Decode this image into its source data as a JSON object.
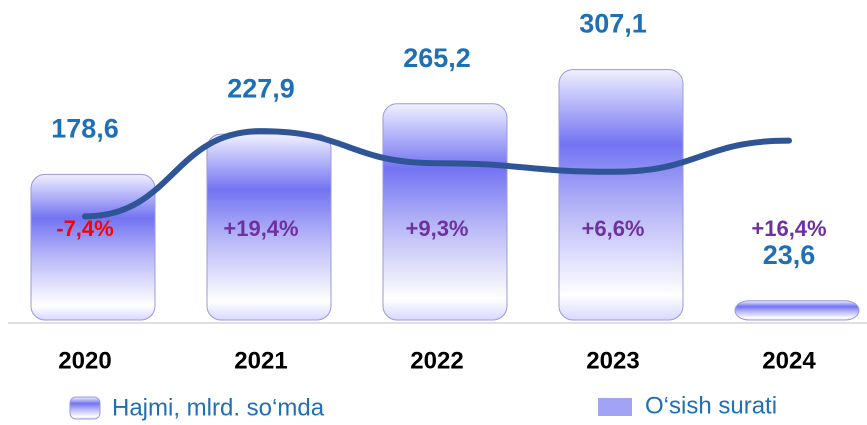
{
  "chart_data": {
    "type": "bar",
    "categories": [
      "2020",
      "2021",
      "2022",
      "2023",
      "2024"
    ],
    "series": [
      {
        "name": "Hajmi, mlrd. so‘mda",
        "color": "#6b6bf0",
        "label_color": "#1f6fb5",
        "values": [
          178.6,
          227.9,
          265.2,
          307.1,
          23.6
        ],
        "value_labels": [
          "178,6",
          "227,9",
          "265,2",
          "307,1",
          "23,6"
        ]
      },
      {
        "name": "O‘sish surati",
        "type": "line",
        "axis": "y2",
        "color": "#2f5597",
        "label_color": "#7030a0",
        "negative_color": "#ff0000",
        "values": [
          -7.4,
          19.4,
          9.3,
          6.6,
          16.4
        ],
        "value_labels": [
          "-7,4%",
          "+19,4%",
          "+9,3%",
          "+6,6%",
          "+16,4%"
        ]
      }
    ],
    "ylim": [
      0,
      390
    ],
    "y2lim": [
      -40,
      60
    ]
  }
}
